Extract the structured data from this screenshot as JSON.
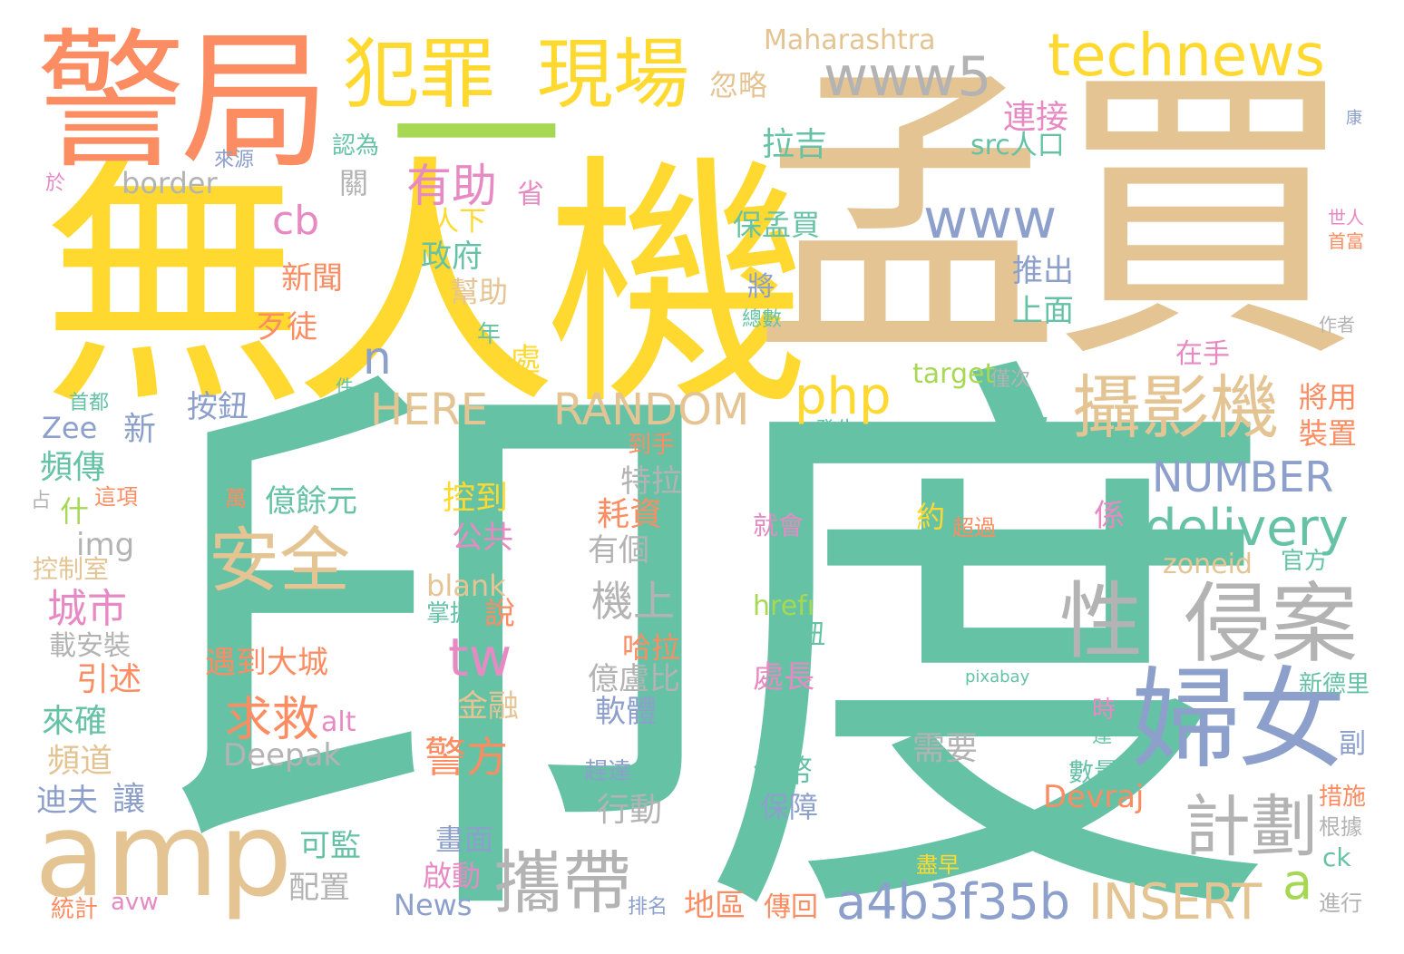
{
  "palette": {
    "teal": "#66c2a5",
    "orange": "#fc8d62",
    "blue": "#8da0cb",
    "pink": "#e78ac3",
    "green": "#a6d854",
    "yellow": "#ffd92f",
    "tan": "#e5c494",
    "gray": "#b3b3b3"
  },
  "words": [
    {
      "text": "印度",
      "color": "teal"
    },
    {
      "text": "無人機",
      "color": "yellow"
    },
    {
      "text": "孟買",
      "color": "tan"
    },
    {
      "text": "警局",
      "color": "orange"
    },
    {
      "text": "一",
      "color": "green"
    },
    {
      "text": "犯罪",
      "color": "yellow"
    },
    {
      "text": "現場",
      "color": "yellow"
    },
    {
      "text": "technews",
      "color": "yellow"
    },
    {
      "text": "www5",
      "color": "gray"
    },
    {
      "text": "Maharashtra",
      "color": "tan"
    },
    {
      "text": "amp",
      "color": "tan"
    },
    {
      "text": "婦女",
      "color": "blue"
    },
    {
      "text": "性",
      "color": "gray"
    },
    {
      "text": "侵案",
      "color": "gray"
    },
    {
      "text": "攝影機",
      "color": "tan"
    },
    {
      "text": "安全",
      "color": "tan"
    },
    {
      "text": "攜帶",
      "color": "gray"
    },
    {
      "text": "a4b3f35b",
      "color": "blue"
    },
    {
      "text": "INSERT",
      "color": "tan"
    },
    {
      "text": "delivery",
      "color": "teal"
    },
    {
      "text": "www",
      "color": "blue"
    },
    {
      "text": "php",
      "color": "yellow"
    },
    {
      "text": "RANDOM",
      "color": "tan"
    },
    {
      "text": "HERE",
      "color": "tan"
    },
    {
      "text": "NUMBER",
      "color": "blue"
    },
    {
      "text": "計劃",
      "color": "gray"
    },
    {
      "text": "tw",
      "color": "pink"
    },
    {
      "text": "n",
      "color": "blue"
    },
    {
      "text": "cb",
      "color": "pink"
    },
    {
      "text": "a",
      "color": "green"
    },
    {
      "text": "有助",
      "color": "pink"
    },
    {
      "text": "求救",
      "color": "orange"
    },
    {
      "text": "警方",
      "color": "orange"
    },
    {
      "text": "城市",
      "color": "pink"
    },
    {
      "text": "機上",
      "color": "gray"
    },
    {
      "text": "連接",
      "color": "pink"
    },
    {
      "text": "拉吉",
      "color": "teal"
    },
    {
      "text": "忽略",
      "color": "tan"
    },
    {
      "text": "src人口",
      "color": "teal"
    },
    {
      "text": "保孟買",
      "color": "teal"
    },
    {
      "text": "推出",
      "color": "blue"
    },
    {
      "text": "上面",
      "color": "teal"
    },
    {
      "text": "將",
      "color": "blue"
    },
    {
      "text": "總數",
      "color": "teal"
    },
    {
      "text": "target",
      "color": "green"
    },
    {
      "text": "僅次",
      "color": "gray"
    },
    {
      "text": "在手",
      "color": "pink"
    },
    {
      "text": "一款",
      "color": "teal"
    },
    {
      "text": "將用",
      "color": "orange"
    },
    {
      "text": "裝置",
      "color": "orange"
    },
    {
      "text": "發生",
      "color": "teal"
    },
    {
      "text": "特拉",
      "color": "gray"
    },
    {
      "text": "到手",
      "color": "orange"
    },
    {
      "text": "約",
      "color": "yellow"
    },
    {
      "text": "超過",
      "color": "orange"
    },
    {
      "text": "係",
      "color": "pink"
    },
    {
      "text": "就會",
      "color": "pink"
    },
    {
      "text": "zoneid",
      "color": "tan"
    },
    {
      "text": "官方",
      "color": "teal"
    },
    {
      "text": "hrefı",
      "color": "green"
    },
    {
      "text": "鈕",
      "color": "teal"
    },
    {
      "text": "馬",
      "color": "teal"
    },
    {
      "text": "pixabay",
      "color": "teal"
    },
    {
      "text": "處長",
      "color": "pink"
    },
    {
      "text": "新德里",
      "color": "teal"
    },
    {
      "text": "時",
      "color": "pink"
    },
    {
      "text": "達",
      "color": "teal"
    },
    {
      "text": "副",
      "color": "blue"
    },
    {
      "text": "需要",
      "color": "gray"
    },
    {
      "text": "數量",
      "color": "teal"
    },
    {
      "text": "台幣",
      "color": "teal"
    },
    {
      "text": "保障",
      "color": "blue"
    },
    {
      "text": "Devraj",
      "color": "orange"
    },
    {
      "text": "措施",
      "color": "orange"
    },
    {
      "text": "根據",
      "color": "gray"
    },
    {
      "text": "ck",
      "color": "teal"
    },
    {
      "text": "盡早",
      "color": "yellow"
    },
    {
      "text": "進行",
      "color": "gray"
    },
    {
      "text": "傳回",
      "color": "orange"
    },
    {
      "text": "地區",
      "color": "orange"
    },
    {
      "text": "排名",
      "color": "blue"
    },
    {
      "text": "News",
      "color": "blue"
    },
    {
      "text": "啟動",
      "color": "pink"
    },
    {
      "text": "畫面",
      "color": "blue"
    },
    {
      "text": "行動",
      "color": "gray"
    },
    {
      "text": "趕達",
      "color": "blue"
    },
    {
      "text": "下",
      "color": "teal"
    },
    {
      "text": "軟體",
      "color": "blue"
    },
    {
      "text": "金融",
      "color": "tan"
    },
    {
      "text": "億盧比",
      "color": "gray"
    },
    {
      "text": "哈拉",
      "color": "orange"
    },
    {
      "text": "掌握",
      "color": "teal"
    },
    {
      "text": "說",
      "color": "orange"
    },
    {
      "text": "blank",
      "color": "tan"
    },
    {
      "text": "有個",
      "color": "gray"
    },
    {
      "text": "公共",
      "color": "pink"
    },
    {
      "text": "控到",
      "color": "yellow"
    },
    {
      "text": "耗資",
      "color": "orange"
    },
    {
      "text": "遇到大城",
      "color": "orange"
    },
    {
      "text": "alt",
      "color": "pink"
    },
    {
      "text": "Deepak",
      "color": "gray"
    },
    {
      "text": "億餘元",
      "color": "teal"
    },
    {
      "text": "萬",
      "color": "orange"
    },
    {
      "text": "可監",
      "color": "teal"
    },
    {
      "text": "配置",
      "color": "gray"
    },
    {
      "text": "avw",
      "color": "pink"
    },
    {
      "text": "統計",
      "color": "orange"
    },
    {
      "text": "迪夫",
      "color": "blue"
    },
    {
      "text": "讓",
      "color": "blue"
    },
    {
      "text": "頻道",
      "color": "tan"
    },
    {
      "text": "來確",
      "color": "teal"
    },
    {
      "text": "引述",
      "color": "orange"
    },
    {
      "text": "載安裝",
      "color": "gray"
    },
    {
      "text": "控制室",
      "color": "tan"
    },
    {
      "text": "img",
      "color": "gray"
    },
    {
      "text": "什",
      "color": "green"
    },
    {
      "text": "這項",
      "color": "orange"
    },
    {
      "text": "占",
      "color": "gray"
    },
    {
      "text": "頻傳",
      "color": "teal"
    },
    {
      "text": "Zee",
      "color": "blue"
    },
    {
      "text": "新",
      "color": "blue"
    },
    {
      "text": "首都",
      "color": "teal"
    },
    {
      "text": "件",
      "color": "teal"
    },
    {
      "text": "按鈕",
      "color": "blue"
    },
    {
      "text": "歹徒",
      "color": "orange"
    },
    {
      "text": "新聞",
      "color": "orange"
    },
    {
      "text": "處",
      "color": "yellow"
    },
    {
      "text": "年",
      "color": "teal"
    },
    {
      "text": "幫助",
      "color": "tan"
    },
    {
      "text": "政府",
      "color": "teal"
    },
    {
      "text": "人下",
      "color": "yellow"
    },
    {
      "text": "省",
      "color": "pink"
    },
    {
      "text": "關",
      "color": "gray"
    },
    {
      "text": "border",
      "color": "gray"
    },
    {
      "text": "認為",
      "color": "teal"
    },
    {
      "text": "來源",
      "color": "blue"
    },
    {
      "text": "於",
      "color": "pink"
    },
    {
      "text": "康",
      "color": "blue"
    },
    {
      "text": "世人",
      "color": "pink"
    },
    {
      "text": "首富",
      "color": "orange"
    },
    {
      "text": "作者",
      "color": "gray"
    }
  ]
}
